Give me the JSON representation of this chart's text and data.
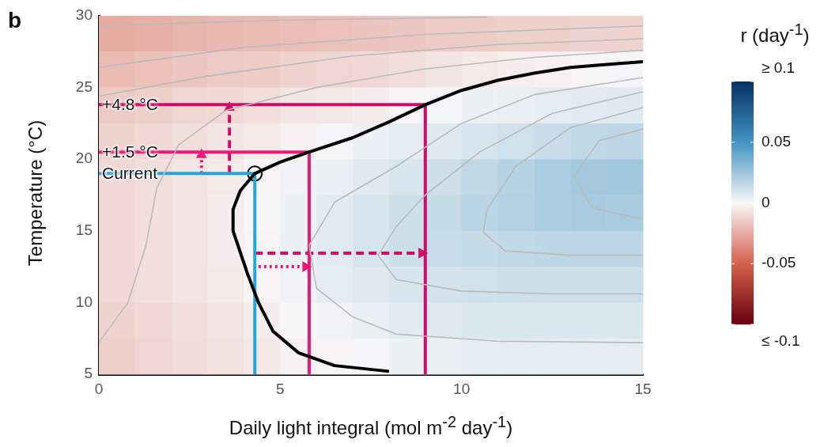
{
  "chart_data": {
    "type": "heatmap",
    "title": "b",
    "xlabel": "Daily light integral (mol m$^{-2}$ day$^{-1}$)",
    "ylabel": "Temperature (°C)",
    "clabel": "r (day$^{-1}$)",
    "xlim": [
      0,
      15
    ],
    "xticks": [
      0,
      5,
      10,
      15
    ],
    "ylim": [
      5,
      30
    ],
    "yticks": [
      5,
      10,
      15,
      20,
      25,
      30
    ],
    "clim": [
      -0.1,
      0.1
    ],
    "cticks": [
      {
        "value": 0.1,
        "label": "≥ 0.1"
      },
      0.05,
      0,
      -0.05,
      {
        "value": -0.1,
        "label": "≤ -0.1"
      }
    ],
    "x": [
      0.5,
      1.5,
      2.5,
      3.5,
      4.5,
      5.5,
      6.5,
      7.5,
      8.5,
      9.5,
      10.5,
      11.5,
      12.5,
      13.5,
      14.5
    ],
    "cells": [
      [
        -0.025,
        -0.024,
        -0.022,
        -0.021,
        -0.02,
        -0.019,
        -0.018,
        -0.017,
        -0.016,
        -0.015,
        -0.014,
        -0.013,
        -0.013,
        -0.012,
        -0.012
      ],
      [
        -0.02,
        -0.018,
        -0.016,
        -0.015,
        -0.014,
        -0.012,
        -0.011,
        -0.01,
        -0.008,
        -0.006,
        -0.004,
        -0.003,
        -0.002,
        -0.001,
        0.001
      ],
      [
        -0.015,
        -0.013,
        -0.011,
        -0.01,
        -0.008,
        -0.006,
        -0.005,
        -0.003,
        -0.001,
        0.001,
        0.003,
        0.004,
        0.005,
        0.006,
        0.007
      ],
      [
        -0.012,
        -0.01,
        -0.008,
        -0.006,
        -0.004,
        -0.002,
        0.001,
        0.003,
        0.005,
        0.007,
        0.009,
        0.011,
        0.013,
        0.015,
        0.016
      ],
      [
        -0.01,
        -0.008,
        -0.006,
        -0.004,
        -0.001,
        0.002,
        0.004,
        0.007,
        0.009,
        0.012,
        0.015,
        0.018,
        0.021,
        0.023,
        0.024
      ],
      [
        -0.01,
        -0.008,
        -0.006,
        -0.003,
        0,
        0.003,
        0.006,
        0.009,
        0.012,
        0.014,
        0.017,
        0.019,
        0.021,
        0.022,
        0.022
      ],
      [
        -0.01,
        -0.008,
        -0.006,
        -0.003,
        -0.001,
        0.003,
        0.006,
        0.009,
        0.012,
        0.013,
        0.014,
        0.015,
        0.016,
        0.016,
        0.016
      ],
      [
        -0.01,
        -0.008,
        -0.006,
        -0.004,
        -0.001,
        0.002,
        0.005,
        0.007,
        0.009,
        0.01,
        0.011,
        0.012,
        0.012,
        0.012,
        0.012
      ],
      [
        -0.012,
        -0.01,
        -0.008,
        -0.006,
        -0.003,
        0,
        0.002,
        0.004,
        0.006,
        0.007,
        0.008,
        0.008,
        0.008,
        0.008,
        0.008
      ],
      [
        -0.013,
        -0.011,
        -0.009,
        -0.007,
        -0.005,
        -0.002,
        -0.001,
        0.001,
        0.003,
        0.004,
        0.005,
        0.005,
        0.005,
        0.005,
        0.005
      ]
    ],
    "series": [
      {
        "type": "line",
        "color": "#bbbbbb",
        "x": [
          0,
          5,
          10.7
        ],
        "values": [
          29.3,
          29.7,
          29.9
        ]
      },
      {
        "type": "line",
        "color": "#bbbbbb",
        "x": [
          0,
          4,
          9,
          15
        ],
        "values": [
          26.4,
          27.8,
          28.7,
          29.3
        ]
      },
      {
        "type": "line",
        "color": "#bbbbbb",
        "x": [
          0,
          3,
          7,
          11,
          15
        ],
        "values": [
          24.4,
          25.8,
          27.2,
          28,
          28.4
        ]
      },
      {
        "type": "line",
        "color": "#bbbbbb",
        "x": [
          0,
          0.8,
          1.3,
          1.6,
          2.2,
          3.5,
          6,
          9,
          12,
          15
        ],
        "values": [
          7.2,
          10,
          14,
          18,
          21,
          23.4,
          25,
          26.3,
          27.1,
          27.6
        ]
      },
      {
        "type": "line",
        "color": "#bbbbbb",
        "x": [
          15,
          12,
          10,
          8.2,
          6.5,
          5.8,
          6,
          7,
          8.2,
          11,
          15
        ],
        "values": [
          25.7,
          24.5,
          22.5,
          19.5,
          17,
          14,
          11,
          9,
          7.8,
          7.3,
          7.2
        ]
      },
      {
        "type": "line",
        "color": "#bbbbbb",
        "x": [
          15,
          12.5,
          10.5,
          9,
          8.2,
          7.7,
          8.2,
          10,
          12.5,
          15
        ],
        "values": [
          24.7,
          23.2,
          20.5,
          17.5,
          15.3,
          13.3,
          11.6,
          10.8,
          10.6,
          10.6
        ]
      },
      {
        "type": "line",
        "color": "#bbbbbb",
        "x": [
          15,
          13,
          11.5,
          10.7,
          10.6,
          11.2,
          13,
          15
        ],
        "values": [
          23.6,
          22.2,
          19.5,
          16.5,
          14.9,
          13.6,
          13.3,
          13.3
        ]
      },
      {
        "type": "line",
        "color": "#bbbbbb",
        "x": [
          15,
          13.8,
          13.1,
          13.6,
          15
        ],
        "values": [
          22.1,
          21.3,
          18.8,
          16.6,
          15.8
        ]
      },
      {
        "type": "line",
        "color": "#000000",
        "x": [
          8,
          6.5,
          5.5,
          4.8,
          4.4,
          4.1,
          3.7,
          3.7,
          3.9,
          4.3,
          5,
          5.8,
          7,
          8,
          9,
          10,
          11,
          12,
          13,
          14,
          15
        ],
        "values": [
          5.2,
          5.6,
          6.5,
          8,
          10,
          12,
          15,
          16.5,
          17.8,
          19,
          19.8,
          20.5,
          21.5,
          22.6,
          23.8,
          24.8,
          25.5,
          26,
          26.4,
          26.6,
          26.8
        ]
      },
      {
        "type": "line",
        "color": "#1ea8e0",
        "x": [
          0,
          4.3,
          4.3
        ],
        "values": [
          19,
          19,
          5
        ]
      },
      {
        "type": "line",
        "color": "#f0177a",
        "x": [
          0,
          5.8,
          5.8
        ],
        "values": [
          20.5,
          20.5,
          5
        ]
      },
      {
        "type": "line",
        "color": "#cc0e68",
        "x": [
          0,
          9,
          9
        ],
        "values": [
          23.8,
          23.8,
          5
        ]
      },
      {
        "type": "line",
        "color": "#f0177a",
        "line_style": "dotted",
        "marker": "triangle",
        "x": [
          2.83,
          2.83
        ],
        "values": [
          19,
          20.3
        ]
      },
      {
        "type": "line",
        "color": "#cc0e68",
        "line_style": "dashed",
        "marker": "triangle",
        "x": [
          3.6,
          3.6
        ],
        "values": [
          19,
          23.6
        ]
      },
      {
        "type": "line",
        "color": "#cc0e68",
        "line_style": "dashed",
        "marker": "triangle",
        "x": [
          4.3,
          8.9
        ],
        "values": [
          13.45,
          13.45
        ]
      },
      {
        "type": "line",
        "color": "#f0177a",
        "line_style": "dotted",
        "marker": "triangle",
        "x": [
          4.4,
          5.7
        ],
        "values": [
          12.5,
          12.5
        ]
      },
      {
        "type": "scatter",
        "color": "#ffffff",
        "marker": "circle",
        "x": [
          4.3
        ],
        "values": [
          19
        ]
      }
    ],
    "annotations": [
      {
        "text": "+4.8 °C",
        "y": 23.8
      },
      {
        "text": "+1.5 °C",
        "y": 20.5
      },
      {
        "text": "Current",
        "y": 19
      }
    ]
  }
}
